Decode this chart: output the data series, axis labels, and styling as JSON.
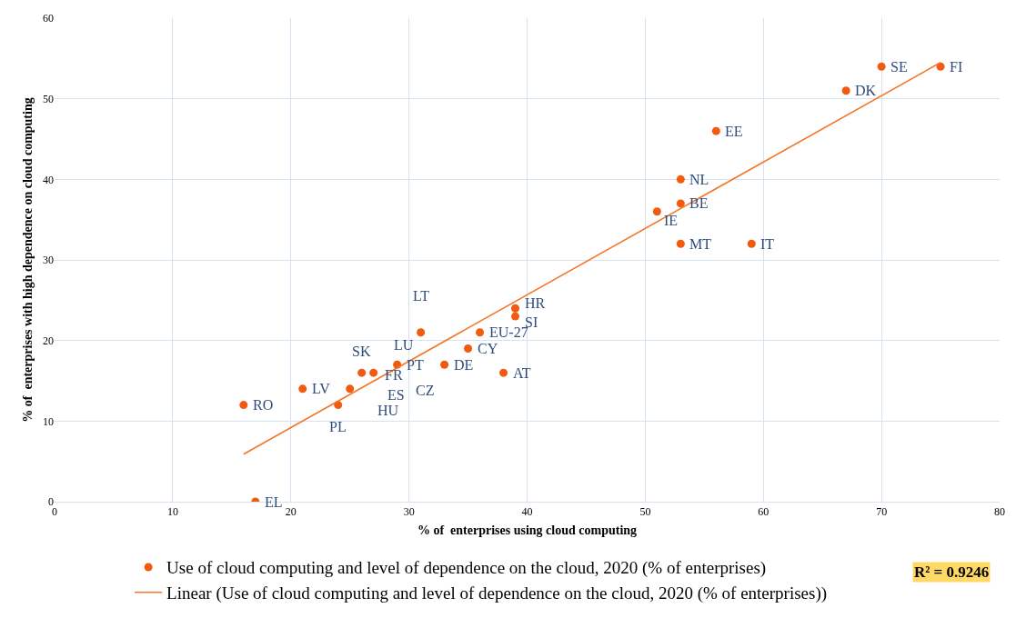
{
  "chart_data": {
    "type": "scatter",
    "xlabel": "% of  enterprises using cloud computing",
    "ylabel": "% of  enterprises with high dependence on cloud computing",
    "xlim": [
      0,
      80
    ],
    "xticks": [
      0,
      10,
      20,
      30,
      40,
      50,
      60,
      70,
      80
    ],
    "ylim": [
      0,
      60
    ],
    "yticks": [
      0,
      10,
      20,
      30,
      40,
      50,
      60
    ],
    "grid": true,
    "legend": "bottom",
    "series": [
      {
        "name": "Use of cloud computing and level of dependence on the cloud, 2020 (% of enterprises)",
        "color": "#f15a0f",
        "marker": "circle",
        "x": [
          16,
          17,
          21,
          24,
          25,
          26,
          27,
          29,
          31,
          33,
          35,
          36,
          38,
          39,
          39,
          51,
          53,
          53,
          53,
          59,
          56,
          67,
          70,
          75
        ],
        "values": [
          12,
          0,
          14,
          12,
          14,
          16,
          16,
          17,
          21,
          17,
          19,
          21,
          16,
          24,
          23,
          36,
          40,
          37,
          32,
          32,
          46,
          51,
          54,
          54
        ]
      },
      {
        "name": "Linear (Use of cloud computing and level of dependence on the cloud, 2020 (% of enterprises))",
        "color": "#f4772c",
        "type": "line",
        "line_style": "solid",
        "x": [
          16,
          75
        ],
        "values": [
          5.9,
          54.5
        ]
      }
    ],
    "annotations": [
      {
        "text": "RO",
        "x": 16,
        "y": 12
      },
      {
        "text": "EL",
        "x": 17,
        "y": 0
      },
      {
        "text": "LV",
        "x": 21,
        "y": 14
      },
      {
        "text": "PL",
        "x": 24,
        "y": 12
      },
      {
        "text": "HU",
        "x": 25,
        "y": 14
      },
      {
        "text": "SK",
        "x": 26,
        "y": 16
      },
      {
        "text": "ES",
        "x": 26,
        "y": 16
      },
      {
        "text": "FR",
        "x": 27,
        "y": 16
      },
      {
        "text": "PT",
        "x": 29,
        "y": 17
      },
      {
        "text": "CZ",
        "x": 29,
        "y": 17
      },
      {
        "text": "LT",
        "x": 31,
        "y": 21
      },
      {
        "text": "LU",
        "x": 31,
        "y": 21
      },
      {
        "text": "DE",
        "x": 33,
        "y": 17
      },
      {
        "text": "CY",
        "x": 35,
        "y": 19
      },
      {
        "text": "EU-27",
        "x": 36,
        "y": 21
      },
      {
        "text": "AT",
        "x": 38,
        "y": 16
      },
      {
        "text": "HR",
        "x": 39,
        "y": 24
      },
      {
        "text": "SI",
        "x": 39,
        "y": 23
      },
      {
        "text": "IE",
        "x": 51,
        "y": 36
      },
      {
        "text": "NL",
        "x": 53,
        "y": 40
      },
      {
        "text": "BE",
        "x": 53,
        "y": 37
      },
      {
        "text": "MT",
        "x": 53,
        "y": 32
      },
      {
        "text": "IT",
        "x": 59,
        "y": 32
      },
      {
        "text": "EE",
        "x": 56,
        "y": 46
      },
      {
        "text": "DK",
        "x": 67,
        "y": 51
      },
      {
        "text": "SE",
        "x": 70,
        "y": 54
      },
      {
        "text": "FI",
        "x": 75,
        "y": 54
      },
      "R² = 0.9246"
    ]
  }
}
